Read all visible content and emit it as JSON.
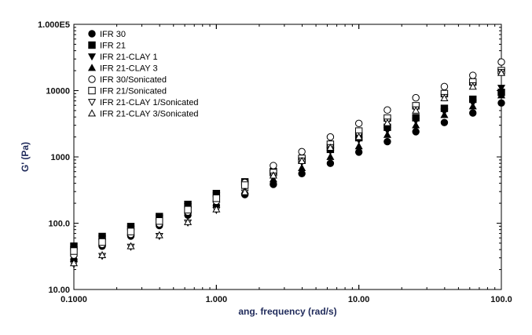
{
  "chart_data": {
    "type": "scatter",
    "xlabel": "ang. frequency (rad/s)",
    "ylabel": "G' (Pa)",
    "x_scale": "log",
    "y_scale": "log",
    "xlim": [
      0.1,
      100
    ],
    "ylim": [
      10,
      100000
    ],
    "x_tick_labels": [
      "0.1000",
      "1.000",
      "10.00",
      "100.0"
    ],
    "y_tick_labels": [
      "10.00",
      "100.0",
      "1000",
      "10000",
      "1.000E5"
    ],
    "legend_position": "top-left",
    "grid": false,
    "x": [
      0.1,
      0.158,
      0.251,
      0.398,
      0.631,
      1.0,
      1.585,
      2.512,
      3.981,
      6.31,
      10.0,
      15.85,
      25.12,
      39.81,
      63.1,
      100.0
    ],
    "series": [
      {
        "name": "IFR 30",
        "marker": "filled-circle",
        "values": [
          28,
          45,
          64,
          92,
          132,
          185,
          270,
          385,
          560,
          800,
          1180,
          1700,
          2400,
          3300,
          4600,
          6500
        ]
      },
      {
        "name": "IFR 21",
        "marker": "filled-square",
        "values": [
          45,
          63,
          89,
          126,
          192,
          280,
          420,
          600,
          890,
          1300,
          1950,
          2800,
          3900,
          5400,
          7400,
          9400
        ]
      },
      {
        "name": "IFR 21-CLAY 1",
        "marker": "filled-triangle-down",
        "values": [
          40,
          58,
          82,
          118,
          178,
          260,
          390,
          560,
          830,
          1230,
          1800,
          2500,
          3500,
          4800,
          6500,
          11000
        ]
      },
      {
        "name": "IFR 21-CLAY 3",
        "marker": "filled-triangle-up",
        "values": [
          35,
          50,
          72,
          104,
          155,
          228,
          310,
          460,
          680,
          1000,
          1450,
          2150,
          3000,
          4300,
          5800,
          8500
        ]
      },
      {
        "name": "IFR 30/Sonicated",
        "marker": "open-circle",
        "values": [
          33,
          48,
          68,
          98,
          148,
          215,
          410,
          740,
          1200,
          2000,
          3200,
          5100,
          7800,
          11500,
          17000,
          27000
        ]
      },
      {
        "name": "IFR 21/Sonicated",
        "marker": "open-square",
        "values": [
          38,
          52,
          75,
          108,
          160,
          238,
          375,
          580,
          950,
          1550,
          2450,
          3850,
          5900,
          9000,
          13500,
          20000
        ]
      },
      {
        "name": "IFR 21-CLAY 1/Sonicated",
        "marker": "open-triangle-down",
        "values": [
          24,
          32,
          44,
          64,
          102,
          158,
          290,
          520,
          880,
          1400,
          2100,
          3400,
          5200,
          8000,
          12000,
          19000
        ]
      },
      {
        "name": "IFR 21-CLAY 3/Sonicated",
        "marker": "open-triangle-up",
        "values": [
          25,
          33,
          45,
          66,
          104,
          162,
          295,
          525,
          870,
          1380,
          2000,
          3250,
          5000,
          7700,
          11500,
          18500
        ]
      }
    ]
  }
}
